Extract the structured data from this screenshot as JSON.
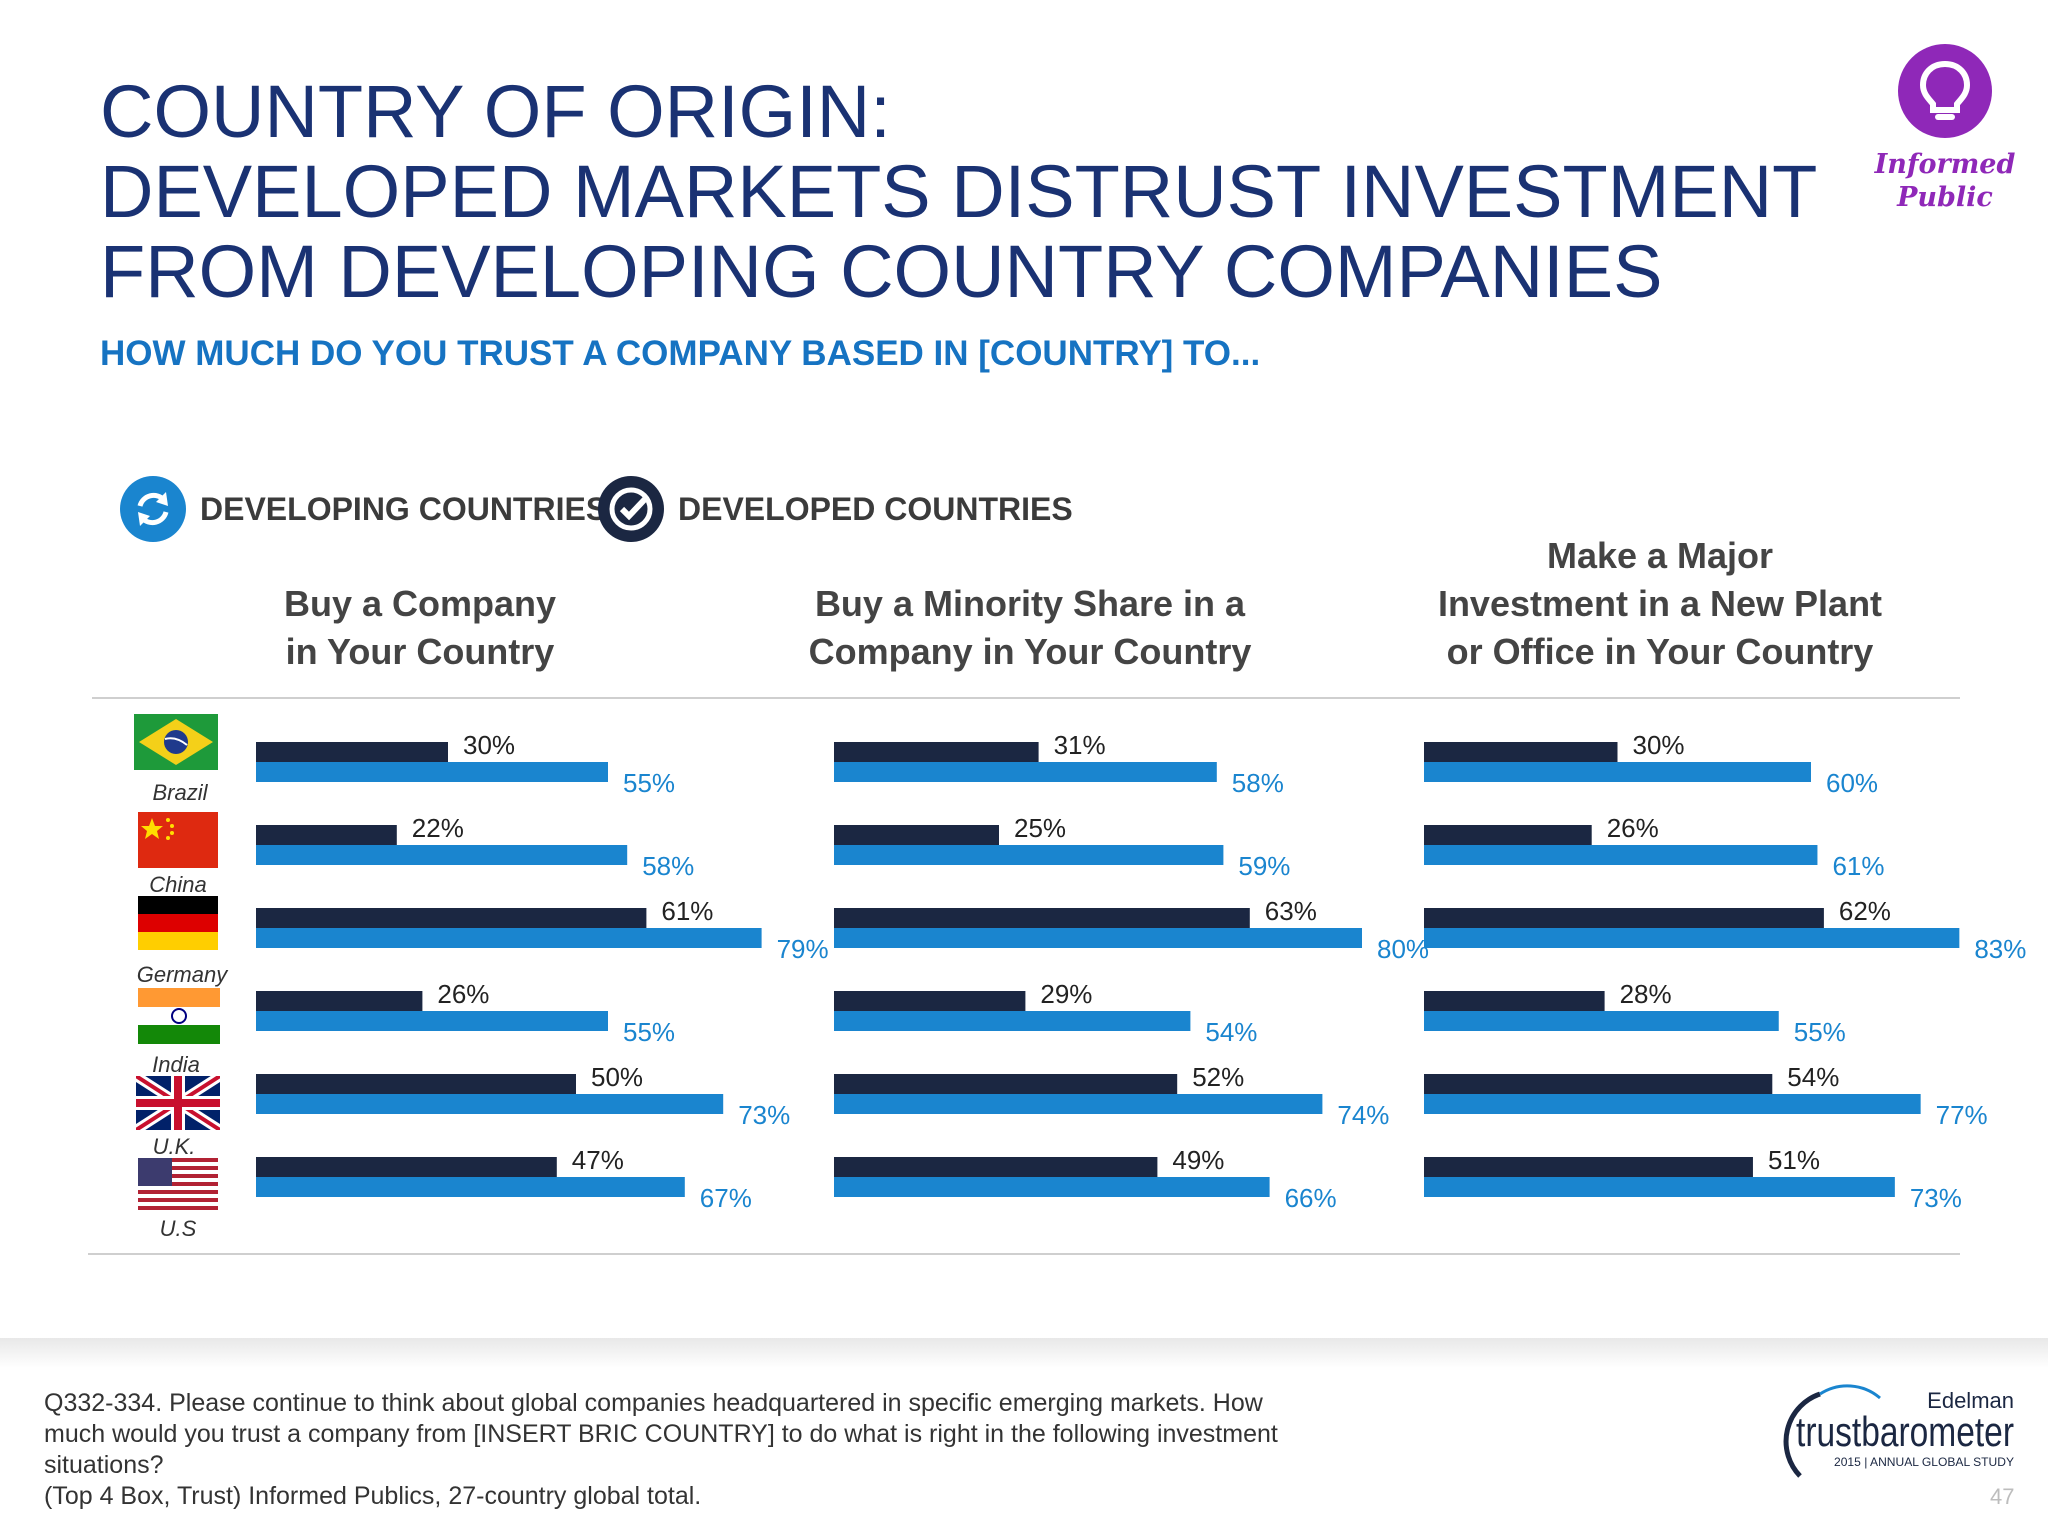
{
  "title": {
    "line1": "COUNTRY OF ORIGIN:",
    "line2": "DEVELOPED MARKETS DISTRUST INVESTMENT",
    "line3": "FROM DEVELOPING COUNTRY COMPANIES"
  },
  "subtitle": "HOW MUCH DO YOU TRUST A COMPANY BASED IN [COUNTRY] TO...",
  "badge": {
    "line1": "Informed",
    "line2": "Public",
    "icon": "lightbulb-icon"
  },
  "legend": {
    "developing": "DEVELOPING COUNTRIES",
    "developed": "DEVELOPED COUNTRIES"
  },
  "colors": {
    "developing": "#1a85cf",
    "developed": "#1b2742",
    "title": "#1a3273",
    "accent": "#8f28b8"
  },
  "columns": [
    {
      "line1": "",
      "line2": "Buy a Company",
      "line3": "in Your Country"
    },
    {
      "line1": "",
      "line2": "Buy a Minority Share in a",
      "line3": "Company in Your Country"
    },
    {
      "line1": "Make a Major",
      "line2": "Investment in a New Plant",
      "line3": "or Office in Your Country"
    }
  ],
  "countries": [
    "Brazil",
    "China",
    "Germany",
    "India",
    "U.K.",
    "U.S"
  ],
  "chart_data": [
    {
      "type": "bar",
      "orientation": "horizontal",
      "title": "Buy a Company in Your Country",
      "categories": [
        "Brazil",
        "China",
        "Germany",
        "India",
        "U.K.",
        "U.S"
      ],
      "series": [
        {
          "name": "DEVELOPED COUNTRIES",
          "values": [
            30,
            22,
            61,
            26,
            50,
            47
          ],
          "labels": [
            "30%",
            "22%",
            "61%",
            "26%",
            "50%",
            "47%"
          ]
        },
        {
          "name": "DEVELOPING COUNTRIES",
          "values": [
            55,
            58,
            79,
            55,
            73,
            67
          ],
          "labels": [
            "55%",
            "58%",
            "79%",
            "55%",
            "73%",
            "67%"
          ]
        }
      ],
      "xlim": [
        0,
        100
      ]
    },
    {
      "type": "bar",
      "orientation": "horizontal",
      "title": "Buy a Minority Share in a Company in Your Country",
      "categories": [
        "Brazil",
        "China",
        "Germany",
        "India",
        "U.K.",
        "U.S"
      ],
      "series": [
        {
          "name": "DEVELOPED COUNTRIES",
          "values": [
            31,
            25,
            63,
            29,
            52,
            49
          ],
          "labels": [
            "31%",
            "25%",
            "63%",
            "29%",
            "52%",
            "49%"
          ]
        },
        {
          "name": "DEVELOPING COUNTRIES",
          "values": [
            58,
            59,
            80,
            54,
            74,
            66
          ],
          "labels": [
            "58%",
            "59%",
            "80%",
            "54%",
            "74%",
            "66%"
          ]
        }
      ],
      "xlim": [
        0,
        100
      ]
    },
    {
      "type": "bar",
      "orientation": "horizontal",
      "title": "Make a Major Investment in a New Plant or Office in Your Country",
      "categories": [
        "Brazil",
        "China",
        "Germany",
        "India",
        "U.K.",
        "U.S"
      ],
      "series": [
        {
          "name": "DEVELOPED COUNTRIES",
          "values": [
            30,
            26,
            62,
            28,
            54,
            51
          ],
          "labels": [
            "30%",
            "26%",
            "62%",
            "28%",
            "54%",
            "51%"
          ]
        },
        {
          "name": "DEVELOPING COUNTRIES",
          "values": [
            60,
            61,
            83,
            55,
            77,
            73
          ],
          "labels": [
            "60%",
            "61%",
            "83%",
            "55%",
            "77%",
            "73%"
          ]
        }
      ],
      "xlim": [
        0,
        100
      ]
    }
  ],
  "footnote": {
    "line1": "Q332-334. Please continue to think about global companies headquartered in specific emerging markets. How",
    "line2": "much would you trust a company from [INSERT BRIC COUNTRY] to do what is right in the following investment",
    "line3": "situations?",
    "line4": "(Top 4 Box, Trust) Informed Publics, 27-country global total."
  },
  "brand": {
    "name": "Edelman",
    "product": "trustbarometer",
    "tagline": "2015 | ANNUAL GLOBAL STUDY"
  },
  "page_number": "47"
}
